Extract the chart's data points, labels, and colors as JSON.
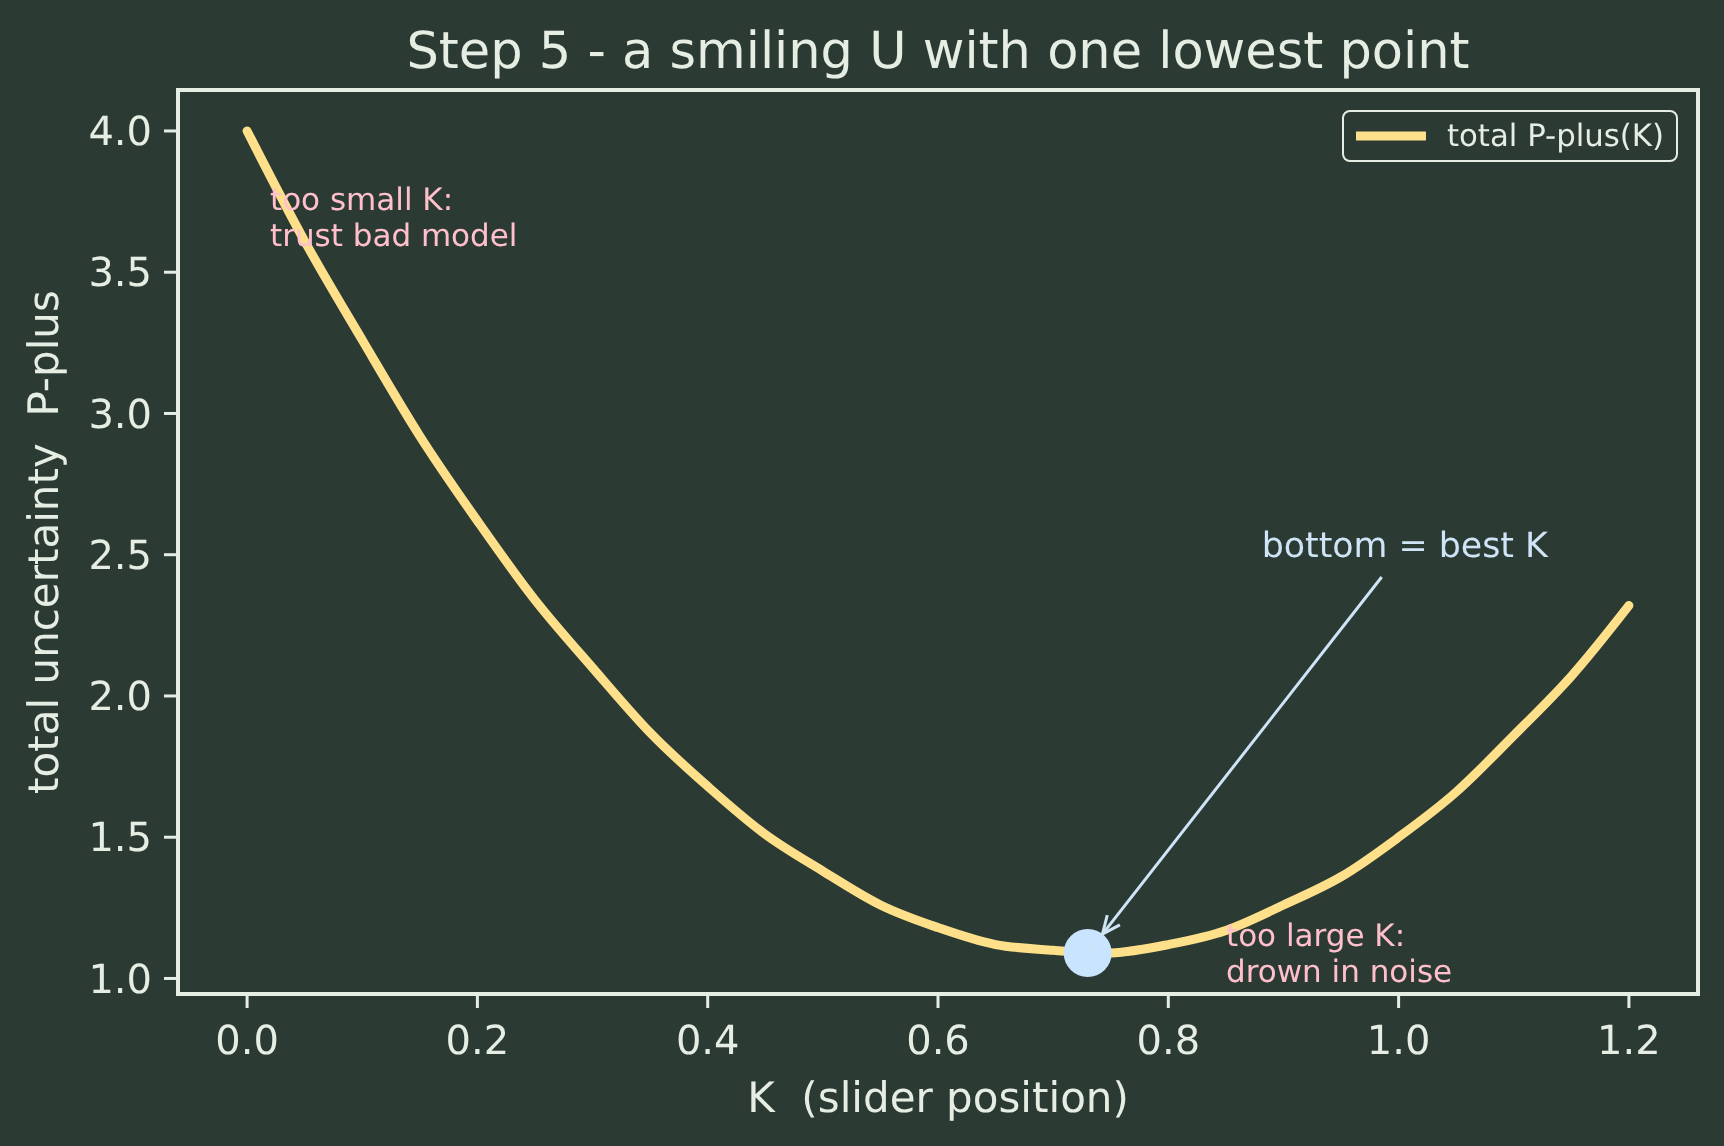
{
  "chart_data": {
    "type": "line",
    "title": "Step 5 - a smiling U with one lowest point",
    "xlabel": "K  (slider position)",
    "ylabel": "total uncertainty  P-plus",
    "xlim": [
      -0.06,
      1.26
    ],
    "xticks": [
      {
        "value": 0,
        "label": "0.0"
      },
      0.2,
      0.4,
      0.6,
      0.8,
      {
        "value": 1,
        "label": "1.0"
      },
      1.2
    ],
    "ylim": [
      0.945,
      4.145
    ],
    "yticks": [
      {
        "value": 1,
        "label": "1.0"
      },
      1.5,
      {
        "value": 2,
        "label": "2.0"
      },
      2.5,
      {
        "value": 3,
        "label": "3.0"
      },
      3.5,
      {
        "value": 4,
        "label": "4.0"
      }
    ],
    "legend": "top right",
    "series": [
      {
        "name": "total P-plus(K)",
        "color": "#ffe08a",
        "marker": "none",
        "line_style": "solid",
        "x": [
          0,
          0.05,
          0.1,
          0.15,
          0.2,
          0.25,
          0.3,
          0.35,
          0.4,
          0.45,
          0.5,
          0.55,
          0.6,
          0.65,
          0.7,
          0.75,
          0.8,
          0.85,
          0.9,
          0.95,
          1,
          1.05,
          1.1,
          1.15,
          1.2
        ],
        "values": [
          4.0,
          3.61,
          3.26,
          2.92,
          2.62,
          2.34,
          2.1,
          1.87,
          1.68,
          1.51,
          1.38,
          1.26,
          1.18,
          1.12,
          1.1,
          1.09,
          1.12,
          1.17,
          1.26,
          1.36,
          1.5,
          1.66,
          1.86,
          2.07,
          2.32
        ]
      },
      {
        "type": "scatter",
        "color": "#c8e4ff",
        "marker": "circle",
        "x": [
          0.73
        ],
        "values": [
          1.09
        ]
      }
    ],
    "annotations": [
      "too small K:\ntrust bad model",
      {
        "text": "bottom = best K",
        "x": 0.73,
        "y": 1.09
      },
      "too large K:\ndrown in noise"
    ]
  }
}
